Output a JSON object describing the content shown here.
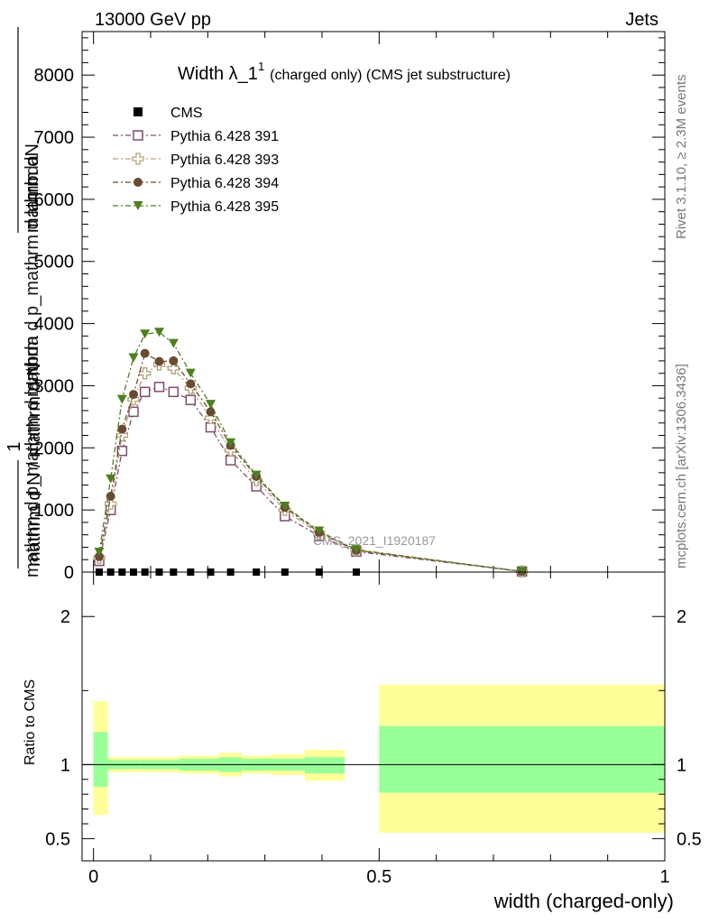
{
  "header": {
    "left": "13000 GeV pp",
    "right": "Jets"
  },
  "side_labels": {
    "rivet": "Rivet 3.1.10, ≥ 2.3M events",
    "mcplots": "mcplots.cern.ch [arXiv:1306.3436]"
  },
  "chart_data": [
    {
      "type": "line",
      "title_main": "Width λ_1",
      "title_sup": "1",
      "title_rest": "(charged only) (CMS jet substructure)",
      "ylabel_lines": [
        "mathrm dN",
        "mathrm d p_mathrm d lambda",
        "mathrm d p_mathrm d lambda"
      ],
      "ylabel_one": "1",
      "ylabel_den": "mathrm d N / mathrm d N",
      "watermark": "CMS_2021_I1920187",
      "xlim": [
        -0.02,
        1.0
      ],
      "ylim": [
        0,
        8700
      ],
      "yticks": [
        0,
        1000,
        2000,
        3000,
        4000,
        5000,
        6000,
        7000,
        8000
      ],
      "ytick_labels": [
        "0",
        "1000",
        "2000",
        "3000",
        "4000",
        "5000",
        "6000",
        "7000",
        "8000"
      ],
      "legend_position": "top-left",
      "legend": [
        "CMS",
        "Pythia 6.428 391",
        "Pythia 6.428 393",
        "Pythia 6.428 394",
        "Pythia 6.428 395"
      ],
      "cms_x": [
        0.01,
        0.03,
        0.05,
        0.07,
        0.09,
        0.115,
        0.14,
        0.17,
        0.205,
        0.24,
        0.285,
        0.335,
        0.395,
        0.46
      ],
      "x": [
        0.01,
        0.03,
        0.05,
        0.07,
        0.09,
        0.115,
        0.14,
        0.17,
        0.205,
        0.24,
        0.285,
        0.335,
        0.395,
        0.46,
        0.75
      ],
      "series": [
        {
          "name": "Pythia 6.428 391",
          "color": "#7d4e68",
          "marker": "open-square",
          "values": [
            180,
            1000,
            1950,
            2580,
            2900,
            2980,
            2900,
            2770,
            2330,
            1800,
            1380,
            900,
            580,
            330,
            10
          ]
        },
        {
          "name": "Pythia 6.428 393",
          "color": "#b3a27a",
          "marker": "open-cross",
          "values": [
            230,
            1100,
            2200,
            2780,
            3200,
            3340,
            3280,
            2960,
            2480,
            1960,
            1480,
            1000,
            620,
            350,
            10
          ]
        },
        {
          "name": "Pythia 6.428 394",
          "color": "#6b4a33",
          "marker": "filled-circle",
          "values": [
            250,
            1220,
            2300,
            2860,
            3520,
            3390,
            3400,
            3030,
            2580,
            2040,
            1540,
            1040,
            640,
            350,
            10
          ]
        },
        {
          "name": "Pythia 6.428 395",
          "color": "#4d7f1f",
          "marker": "filled-triangle-down",
          "values": [
            320,
            1500,
            2780,
            3450,
            3830,
            3860,
            3680,
            3200,
            2700,
            2080,
            1560,
            1060,
            660,
            360,
            10
          ]
        }
      ]
    },
    {
      "type": "area",
      "ylabel": "Ratio to CMS",
      "xlabel": "width (charged-only)",
      "xlim": [
        -0.02,
        1.0
      ],
      "ylim": [
        0.35,
        2.3
      ],
      "yticks": [
        0.5,
        1,
        2
      ],
      "ytick_labels": [
        "0.5",
        "1",
        "2"
      ],
      "xticks": [
        0,
        0.5,
        1
      ],
      "xtick_labels": [
        "0",
        "0.5",
        "1"
      ],
      "bins": [
        {
          "x0": 0.0,
          "x1": 0.025,
          "yellow": [
            0.66,
            1.43
          ],
          "green": [
            0.85,
            1.22
          ]
        },
        {
          "x0": 0.025,
          "x1": 0.04,
          "yellow": [
            0.95,
            1.05
          ],
          "green": [
            0.97,
            1.03
          ]
        },
        {
          "x0": 0.04,
          "x1": 0.08,
          "yellow": [
            0.95,
            1.05
          ],
          "green": [
            0.97,
            1.03
          ]
        },
        {
          "x0": 0.08,
          "x1": 0.15,
          "yellow": [
            0.95,
            1.05
          ],
          "green": [
            0.97,
            1.03
          ]
        },
        {
          "x0": 0.15,
          "x1": 0.22,
          "yellow": [
            0.94,
            1.06
          ],
          "green": [
            0.96,
            1.04
          ]
        },
        {
          "x0": 0.22,
          "x1": 0.26,
          "yellow": [
            0.92,
            1.08
          ],
          "green": [
            0.95,
            1.05
          ]
        },
        {
          "x0": 0.26,
          "x1": 0.31,
          "yellow": [
            0.94,
            1.06
          ],
          "green": [
            0.96,
            1.04
          ]
        },
        {
          "x0": 0.31,
          "x1": 0.37,
          "yellow": [
            0.93,
            1.07
          ],
          "green": [
            0.96,
            1.04
          ]
        },
        {
          "x0": 0.37,
          "x1": 0.44,
          "yellow": [
            0.89,
            1.1
          ],
          "green": [
            0.94,
            1.05
          ]
        },
        {
          "x0": 0.5,
          "x1": 1.0,
          "yellow": [
            0.54,
            1.54
          ],
          "green": [
            0.81,
            1.26
          ]
        }
      ],
      "reference": 1.0,
      "colors": {
        "yellow": "#ffff99",
        "green": "#99ff99"
      }
    }
  ]
}
